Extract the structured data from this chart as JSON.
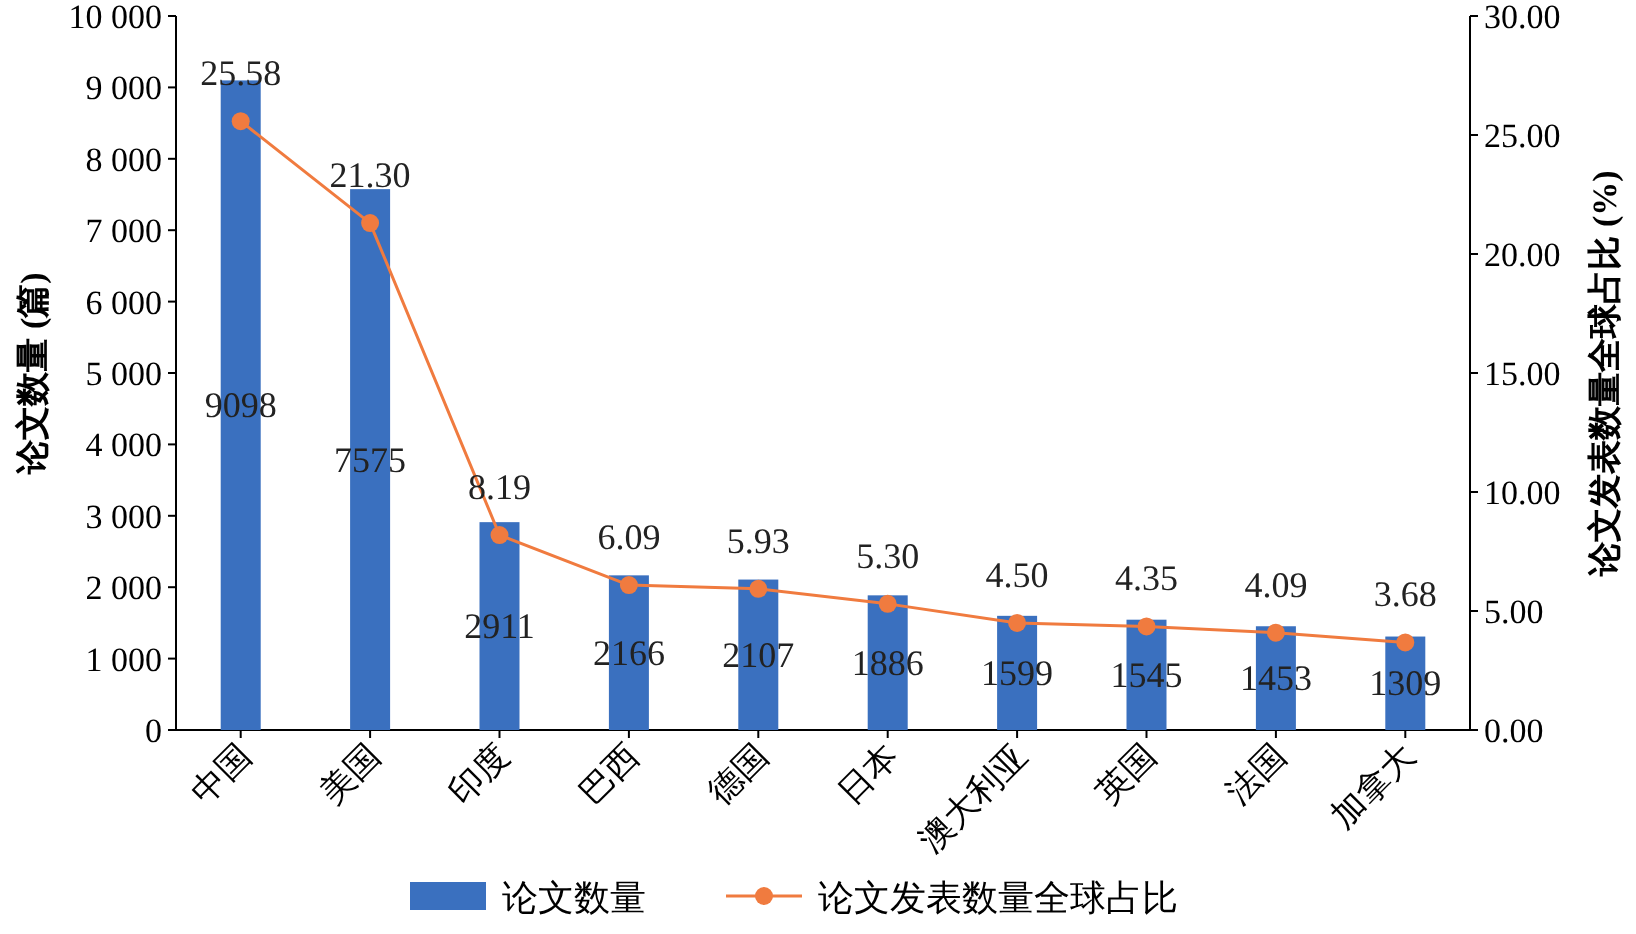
{
  "chart_data": {
    "type": "bar",
    "categories": [
      "中国",
      "美国",
      "印度",
      "巴西",
      "德国",
      "日本",
      "澳大利亚",
      "英国",
      "法国",
      "加拿大"
    ],
    "ylabel": "论文数量 (篇)",
    "y2label": "论文发表数量全球占比 (%)",
    "ylim": [
      0,
      10000
    ],
    "yticks": [
      0,
      {
        "value": 1000,
        "label": "1 000"
      },
      {
        "value": 2000,
        "label": "2 000"
      },
      {
        "value": 3000,
        "label": "3 000"
      },
      {
        "value": 4000,
        "label": "4 000"
      },
      {
        "value": 5000,
        "label": "5 000"
      },
      {
        "value": 6000,
        "label": "6 000"
      },
      {
        "value": 7000,
        "label": "7 000"
      },
      {
        "value": 8000,
        "label": "8 000"
      },
      {
        "value": 9000,
        "label": "9 000"
      },
      {
        "value": 10000,
        "label": "10 000"
      }
    ],
    "y2lim": [
      0,
      30
    ],
    "y2ticks": [
      {
        "value": 0,
        "label": "0.00"
      },
      {
        "value": 5,
        "label": "5.00"
      },
      {
        "value": 10,
        "label": "10.00"
      },
      {
        "value": 15,
        "label": "15.00"
      },
      {
        "value": 20,
        "label": "20.00"
      },
      {
        "value": 25,
        "label": "25.00"
      },
      {
        "value": 30,
        "label": "30.00"
      }
    ],
    "series": [
      {
        "name": "论文数量",
        "color": "#3a70bf",
        "values": [
          9098,
          7575,
          2911,
          2166,
          2107,
          1886,
          1599,
          1545,
          1453,
          1309
        ],
        "value_labels": [
          "9098",
          "7575",
          "2911",
          "2166",
          "2107",
          "1886",
          "1599",
          "1545",
          "1453",
          "1309"
        ]
      },
      {
        "name": "论文发表数量全球占比",
        "type": "line",
        "axis": "y2",
        "color": "#f07b3f",
        "values": [
          25.58,
          21.3,
          8.19,
          6.09,
          5.93,
          5.3,
          4.5,
          4.35,
          4.09,
          3.68
        ],
        "value_labels": [
          "25.58",
          "21.30",
          "8.19",
          "6.09",
          "5.93",
          "5.30",
          "4.50",
          "4.35",
          "4.09",
          "3.68"
        ]
      }
    ],
    "marker": "circle",
    "legend": "bottom",
    "grid": false
  }
}
